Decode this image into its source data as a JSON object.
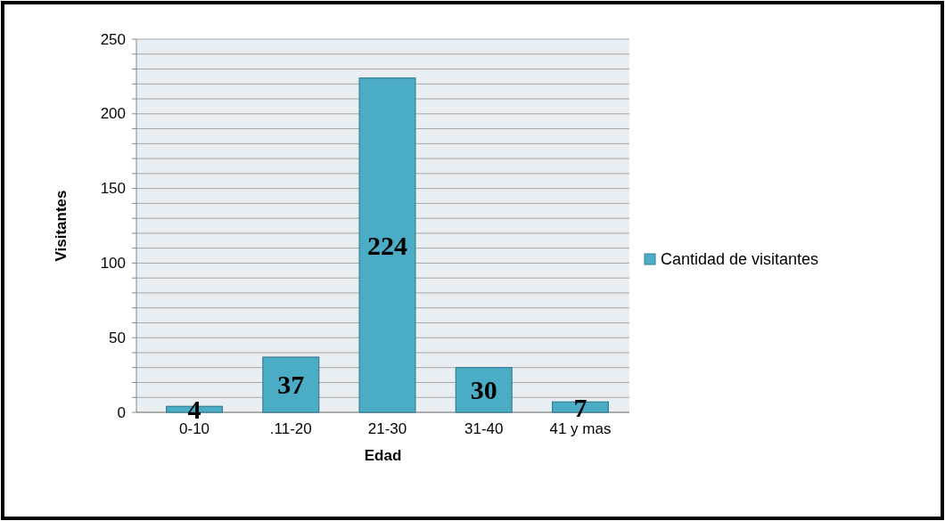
{
  "chart_data": {
    "type": "bar",
    "xlabel": "Edad",
    "ylabel": "Visitantes",
    "categories": [
      "0-10",
      ".11-20",
      "21-30",
      "31-40",
      "41 y mas"
    ],
    "series": [
      {
        "name": "Cantidad de visitantes",
        "color": "#4bacc6",
        "values": [
          4,
          37,
          224,
          30,
          7
        ]
      }
    ],
    "ylim": [
      0,
      250
    ],
    "yticks": [
      0,
      {
        "value": 10,
        "label": null
      },
      {
        "value": 20,
        "label": null
      },
      {
        "value": 30,
        "label": null
      },
      {
        "value": 40,
        "label": null
      },
      50,
      {
        "value": 60,
        "label": null
      },
      {
        "value": 70,
        "label": null
      },
      {
        "value": 80,
        "label": null
      },
      {
        "value": 90,
        "label": null
      },
      100,
      {
        "value": 110,
        "label": null
      },
      {
        "value": 120,
        "label": null
      },
      {
        "value": 130,
        "label": null
      },
      {
        "value": 140,
        "label": null
      },
      150,
      {
        "value": 160,
        "label": null
      },
      {
        "value": 170,
        "label": null
      },
      {
        "value": 180,
        "label": null
      },
      {
        "value": 190,
        "label": null
      },
      200,
      {
        "value": 210,
        "label": null
      },
      {
        "value": 220,
        "label": null
      },
      {
        "value": 230,
        "label": null
      },
      {
        "value": 240,
        "label": null
      },
      250
    ],
    "grid": "y",
    "legend": "right",
    "data_labels": true
  }
}
